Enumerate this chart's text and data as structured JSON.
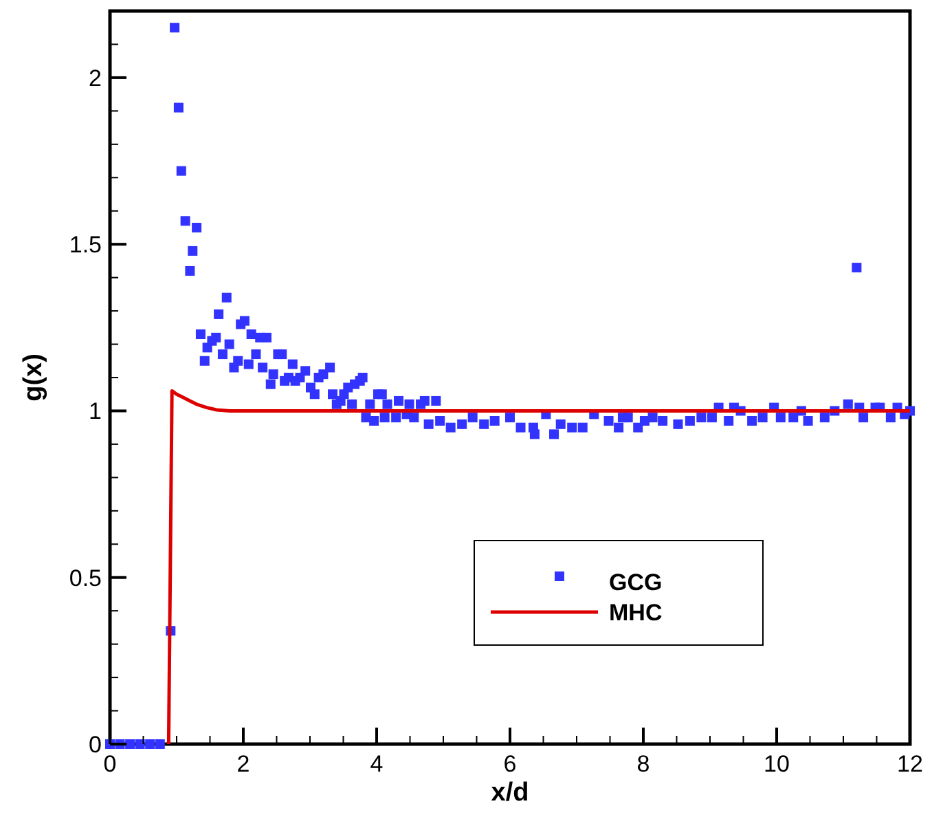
{
  "chart_data": {
    "type": "scatter",
    "xlabel": "x/d",
    "ylabel": "g(x)",
    "xlim": [
      0,
      12
    ],
    "ylim": [
      0,
      2.2
    ],
    "xticks": [
      0,
      {
        "value": 0.5,
        "label": null
      },
      {
        "value": 1,
        "label": null
      },
      {
        "value": 1.5,
        "label": null
      },
      2,
      {
        "value": 2.5,
        "label": null
      },
      {
        "value": 3,
        "label": null
      },
      {
        "value": 3.5,
        "label": null
      },
      4,
      {
        "value": 4.5,
        "label": null
      },
      {
        "value": 5,
        "label": null
      },
      {
        "value": 5.5,
        "label": null
      },
      6,
      {
        "value": 6.5,
        "label": null
      },
      {
        "value": 7,
        "label": null
      },
      {
        "value": 7.5,
        "label": null
      },
      8,
      {
        "value": 8.5,
        "label": null
      },
      {
        "value": 9,
        "label": null
      },
      {
        "value": 9.5,
        "label": null
      },
      10,
      {
        "value": 10.5,
        "label": null
      },
      {
        "value": 11,
        "label": null
      },
      {
        "value": 11.5,
        "label": null
      },
      12
    ],
    "yticks": [
      0,
      {
        "value": 0.1,
        "label": null
      },
      {
        "value": 0.2,
        "label": null
      },
      {
        "value": 0.3,
        "label": null
      },
      {
        "value": 0.4,
        "label": null
      },
      0.5,
      {
        "value": 0.6,
        "label": null
      },
      {
        "value": 0.7,
        "label": null
      },
      {
        "value": 0.8,
        "label": null
      },
      {
        "value": 0.9,
        "label": null
      },
      1,
      {
        "value": 1.1,
        "label": null
      },
      {
        "value": 1.2,
        "label": null
      },
      {
        "value": 1.3,
        "label": null
      },
      {
        "value": 1.4,
        "label": null
      },
      1.5,
      {
        "value": 1.6,
        "label": null
      },
      {
        "value": 1.7,
        "label": null
      },
      {
        "value": 1.8,
        "label": null
      },
      {
        "value": 1.9,
        "label": null
      },
      2,
      {
        "value": 2.1,
        "label": null
      }
    ],
    "legend": "bottom right",
    "grid": false,
    "series": [
      {
        "name": "GCG",
        "marker": "square",
        "color": "#3333ff",
        "x": [
          0,
          0.15,
          0.3,
          0.45,
          0.6,
          0.75,
          0.91,
          0.97,
          1.03,
          1.07,
          1.13,
          1.2,
          1.24,
          1.3,
          1.36,
          1.42,
          1.46,
          1.53,
          1.59,
          1.63,
          1.69,
          1.75,
          1.79,
          1.86,
          1.92,
          1.96,
          2.02,
          2.08,
          2.12,
          2.19,
          2.25,
          2.29,
          2.35,
          2.41,
          2.45,
          2.52,
          2.58,
          2.62,
          2.68,
          2.74,
          2.78,
          2.85,
          2.93,
          3.01,
          3.07,
          3.13,
          3.2,
          3.3,
          3.34,
          3.4,
          3.46,
          3.51,
          3.57,
          3.63,
          3.67,
          3.75,
          3.79,
          3.84,
          3.9,
          3.96,
          4.02,
          4.08,
          4.12,
          4.16,
          4.29,
          4.33,
          4.45,
          4.49,
          4.56,
          4.66,
          4.72,
          4.78,
          4.89,
          4.95,
          5.11,
          5.28,
          5.44,
          5.61,
          5.77,
          6.0,
          6.16,
          6.35,
          6.37,
          6.54,
          6.66,
          6.76,
          6.93,
          7.09,
          7.26,
          7.48,
          7.63,
          7.69,
          7.77,
          7.92,
          8.02,
          8.14,
          8.29,
          8.52,
          8.7,
          8.87,
          9.03,
          9.13,
          9.28,
          9.36,
          9.46,
          9.63,
          9.79,
          9.96,
          10.06,
          10.25,
          10.37,
          10.47,
          10.72,
          10.87,
          11.07,
          11.2,
          11.24,
          11.3,
          11.48,
          11.55,
          11.71,
          11.81,
          11.92,
          12.0
        ],
        "values": [
          0,
          0,
          0,
          0,
          0,
          0,
          0.34,
          2.15,
          1.91,
          1.72,
          1.57,
          1.42,
          1.48,
          1.55,
          1.23,
          1.15,
          1.19,
          1.21,
          1.22,
          1.29,
          1.17,
          1.34,
          1.2,
          1.13,
          1.15,
          1.26,
          1.27,
          1.14,
          1.23,
          1.17,
          1.22,
          1.13,
          1.22,
          1.08,
          1.11,
          1.17,
          1.17,
          1.09,
          1.1,
          1.14,
          1.09,
          1.1,
          1.12,
          1.07,
          1.05,
          1.1,
          1.11,
          1.13,
          1.05,
          1.02,
          1.03,
          1.05,
          1.07,
          1.02,
          1.08,
          1.09,
          1.1,
          0.98,
          1.02,
          0.97,
          1.05,
          1.05,
          0.98,
          1.02,
          0.98,
          1.03,
          0.99,
          1.02,
          0.98,
          1.02,
          1.03,
          0.96,
          1.03,
          0.97,
          0.95,
          0.96,
          0.98,
          0.96,
          0.97,
          0.98,
          0.95,
          0.95,
          0.93,
          0.99,
          0.93,
          0.96,
          0.95,
          0.95,
          0.99,
          0.97,
          0.95,
          0.98,
          0.98,
          0.95,
          0.97,
          0.98,
          0.97,
          0.96,
          0.97,
          0.98,
          0.98,
          1.01,
          0.97,
          1.01,
          1.0,
          0.97,
          0.98,
          1.01,
          0.98,
          0.98,
          1.0,
          0.97,
          0.98,
          1.0,
          1.02,
          1.43,
          1.01,
          0.98,
          1.01,
          1.01,
          0.98,
          1.01,
          0.99,
          1.0
        ]
      },
      {
        "name": "MHC",
        "type": "line",
        "color": "#dd0000",
        "x": [
          0.88,
          0.93,
          1.0,
          1.1,
          1.2,
          1.3,
          1.45,
          1.6,
          1.8,
          12
        ],
        "values": [
          0,
          1.06,
          1.05,
          1.04,
          1.03,
          1.02,
          1.01,
          1.003,
          1.0,
          1.0
        ]
      }
    ]
  }
}
